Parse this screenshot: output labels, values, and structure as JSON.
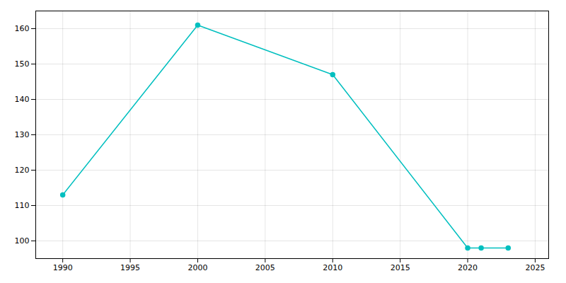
{
  "chart_data": {
    "type": "line",
    "x": [
      1990,
      2000,
      2010,
      2020,
      2021,
      2023
    ],
    "values": [
      113,
      161,
      147,
      98,
      98,
      98
    ],
    "color": "#00BFBF",
    "marker": "circle",
    "xlim": [
      1988,
      2026
    ],
    "xticks": [
      1990,
      1995,
      2000,
      2005,
      2010,
      2015,
      2020,
      2025
    ],
    "ylim": [
      95,
      165
    ],
    "yticks": [
      100,
      110,
      120,
      130,
      140,
      150,
      160
    ],
    "grid": true
  }
}
